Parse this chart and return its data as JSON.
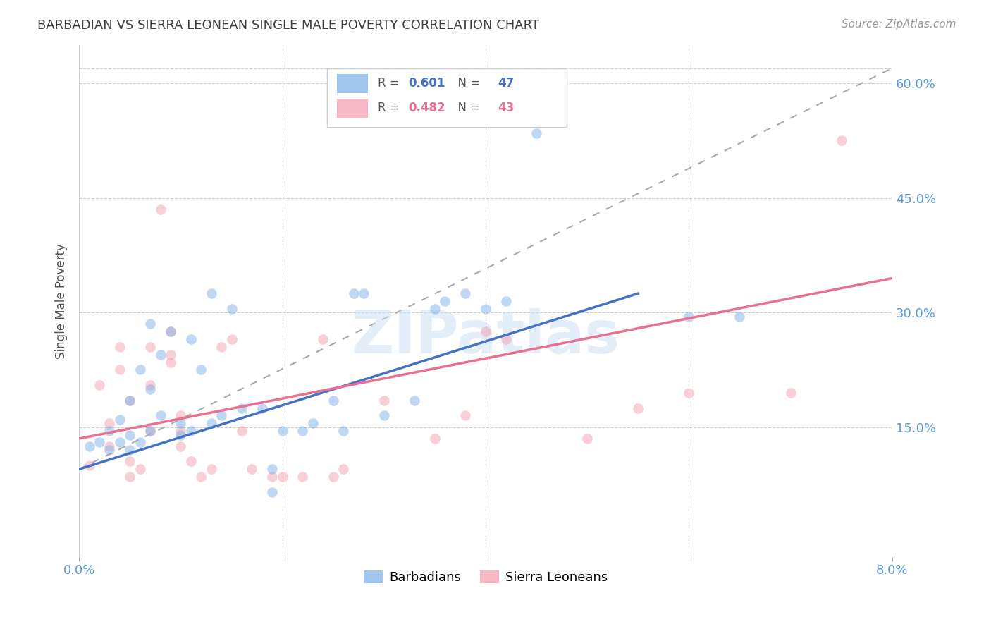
{
  "title": "BARBADIAN VS SIERRA LEONEAN SINGLE MALE POVERTY CORRELATION CHART",
  "source": "Source: ZipAtlas.com",
  "ylabel": "Single Male Poverty",
  "xlim": [
    0.0,
    0.08
  ],
  "ylim": [
    -0.02,
    0.65
  ],
  "watermark": "ZIPatlas",
  "barbadian_scatter": [
    [
      0.001,
      0.125
    ],
    [
      0.002,
      0.13
    ],
    [
      0.003,
      0.12
    ],
    [
      0.003,
      0.145
    ],
    [
      0.004,
      0.13
    ],
    [
      0.004,
      0.16
    ],
    [
      0.005,
      0.185
    ],
    [
      0.005,
      0.14
    ],
    [
      0.005,
      0.12
    ],
    [
      0.006,
      0.13
    ],
    [
      0.006,
      0.225
    ],
    [
      0.007,
      0.2
    ],
    [
      0.007,
      0.145
    ],
    [
      0.007,
      0.285
    ],
    [
      0.008,
      0.165
    ],
    [
      0.008,
      0.245
    ],
    [
      0.009,
      0.275
    ],
    [
      0.01,
      0.14
    ],
    [
      0.01,
      0.155
    ],
    [
      0.011,
      0.265
    ],
    [
      0.011,
      0.145
    ],
    [
      0.012,
      0.225
    ],
    [
      0.013,
      0.155
    ],
    [
      0.013,
      0.325
    ],
    [
      0.014,
      0.165
    ],
    [
      0.015,
      0.305
    ],
    [
      0.016,
      0.175
    ],
    [
      0.018,
      0.175
    ],
    [
      0.019,
      0.065
    ],
    [
      0.019,
      0.095
    ],
    [
      0.02,
      0.145
    ],
    [
      0.022,
      0.145
    ],
    [
      0.023,
      0.155
    ],
    [
      0.025,
      0.185
    ],
    [
      0.026,
      0.145
    ],
    [
      0.027,
      0.325
    ],
    [
      0.028,
      0.325
    ],
    [
      0.03,
      0.165
    ],
    [
      0.033,
      0.185
    ],
    [
      0.035,
      0.305
    ],
    [
      0.036,
      0.315
    ],
    [
      0.038,
      0.325
    ],
    [
      0.04,
      0.305
    ],
    [
      0.042,
      0.315
    ],
    [
      0.045,
      0.535
    ],
    [
      0.06,
      0.295
    ],
    [
      0.065,
      0.295
    ]
  ],
  "sierra_scatter": [
    [
      0.001,
      0.1
    ],
    [
      0.002,
      0.205
    ],
    [
      0.003,
      0.125
    ],
    [
      0.003,
      0.155
    ],
    [
      0.004,
      0.225
    ],
    [
      0.004,
      0.255
    ],
    [
      0.005,
      0.185
    ],
    [
      0.005,
      0.085
    ],
    [
      0.005,
      0.105
    ],
    [
      0.006,
      0.095
    ],
    [
      0.007,
      0.205
    ],
    [
      0.007,
      0.145
    ],
    [
      0.007,
      0.255
    ],
    [
      0.008,
      0.435
    ],
    [
      0.009,
      0.275
    ],
    [
      0.009,
      0.235
    ],
    [
      0.009,
      0.245
    ],
    [
      0.01,
      0.145
    ],
    [
      0.01,
      0.125
    ],
    [
      0.01,
      0.165
    ],
    [
      0.011,
      0.105
    ],
    [
      0.012,
      0.085
    ],
    [
      0.013,
      0.095
    ],
    [
      0.014,
      0.255
    ],
    [
      0.015,
      0.265
    ],
    [
      0.016,
      0.145
    ],
    [
      0.017,
      0.095
    ],
    [
      0.019,
      0.085
    ],
    [
      0.02,
      0.085
    ],
    [
      0.022,
      0.085
    ],
    [
      0.024,
      0.265
    ],
    [
      0.025,
      0.085
    ],
    [
      0.026,
      0.095
    ],
    [
      0.03,
      0.185
    ],
    [
      0.035,
      0.135
    ],
    [
      0.038,
      0.165
    ],
    [
      0.04,
      0.275
    ],
    [
      0.042,
      0.265
    ],
    [
      0.05,
      0.135
    ],
    [
      0.055,
      0.175
    ],
    [
      0.06,
      0.195
    ],
    [
      0.07,
      0.195
    ],
    [
      0.075,
      0.525
    ]
  ],
  "barbadian_line": [
    [
      0.0,
      0.095
    ],
    [
      0.055,
      0.325
    ]
  ],
  "sierra_line": [
    [
      0.0,
      0.135
    ],
    [
      0.08,
      0.345
    ]
  ],
  "gray_dashed_line": [
    [
      0.0,
      0.095
    ],
    [
      0.08,
      0.62
    ]
  ],
  "background_color": "#ffffff",
  "scatter_alpha": 0.5,
  "scatter_size": 110,
  "barbadian_color": "#7fb3e8",
  "sierra_color": "#f4a0b0",
  "trend_line_blue": "#4472c4",
  "trend_line_pink": "#e87090",
  "gray_dashed_color": "#aaaaaa",
  "grid_color": "#cccccc",
  "axis_label_color": "#5b9bd5",
  "title_color": "#404040",
  "ytick_vals": [
    0.15,
    0.3,
    0.45,
    0.6
  ],
  "ytick_labels": [
    "15.0%",
    "30.0%",
    "45.0%",
    "60.0%"
  ]
}
